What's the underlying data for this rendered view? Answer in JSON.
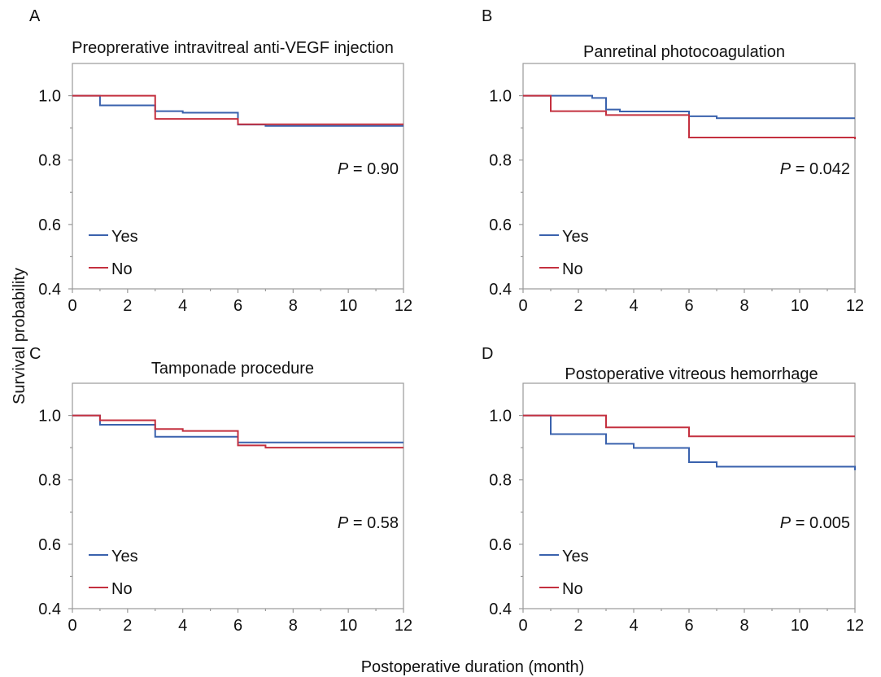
{
  "colors": {
    "yes": "#3a62ad",
    "no": "#c4303f",
    "axis": "#9a9a9a"
  },
  "chart_data": {
    "type": "line",
    "ylabel": "Survival probability",
    "xlabel": "Postoperative duration (month)",
    "xlim": [
      0,
      12
    ],
    "ylim": [
      0.4,
      1.1
    ],
    "xticks": [
      "0",
      "2",
      "4",
      "6",
      "8",
      "10",
      "12"
    ],
    "yticks": [
      "0.4",
      "0.6",
      "0.8",
      "1.0"
    ],
    "grid": false,
    "legend_placement": "bottom-left",
    "panels": [
      {
        "letter": "A",
        "title": "Preoprerative intravitreal anti-VEGF injection",
        "p_label": "P",
        "p_value": "= 0.90",
        "series": [
          {
            "name": "Yes",
            "x": [
              0,
              1,
              3,
              4,
              6,
              7,
              12
            ],
            "y": [
              1.0,
              0.97,
              0.952,
              0.947,
              0.91,
              0.906,
              0.906
            ]
          },
          {
            "name": "No",
            "x": [
              0,
              3,
              6,
              12
            ],
            "y": [
              1.0,
              0.928,
              0.911,
              0.911
            ]
          }
        ]
      },
      {
        "letter": "B",
        "title": "Panretinal photocoagulation",
        "p_label": "P",
        "p_value": "= 0.042",
        "series": [
          {
            "name": "Yes",
            "x": [
              0,
              2.5,
              3,
              3.5,
              6,
              7,
              12
            ],
            "y": [
              1.0,
              0.993,
              0.957,
              0.951,
              0.936,
              0.93,
              0.93
            ]
          },
          {
            "name": "No",
            "x": [
              0,
              1,
              3,
              6,
              12
            ],
            "y": [
              1.0,
              0.952,
              0.94,
              0.87,
              0.865
            ]
          }
        ]
      },
      {
        "letter": "C",
        "title": "Tamponade procedure",
        "p_label": "P",
        "p_value": "= 0.58",
        "series": [
          {
            "name": "Yes",
            "x": [
              0,
              1,
              3,
              6,
              12
            ],
            "y": [
              1.0,
              0.971,
              0.934,
              0.916,
              0.916
            ]
          },
          {
            "name": "No",
            "x": [
              0,
              1,
              3,
              4,
              6,
              7,
              12
            ],
            "y": [
              1.0,
              0.985,
              0.958,
              0.952,
              0.907,
              0.9,
              0.9
            ]
          }
        ]
      },
      {
        "letter": "D",
        "title": "Postoperative vitreous hemorrhage",
        "p_label": "P",
        "p_value": "= 0.005",
        "series": [
          {
            "name": "Yes",
            "x": [
              0,
              1,
              3,
              4,
              6,
              7,
              12
            ],
            "y": [
              1.0,
              0.942,
              0.912,
              0.899,
              0.855,
              0.841,
              0.83
            ]
          },
          {
            "name": "No",
            "x": [
              0,
              3,
              6,
              12
            ],
            "y": [
              1.0,
              0.963,
              0.935,
              0.935
            ]
          }
        ]
      }
    ]
  }
}
